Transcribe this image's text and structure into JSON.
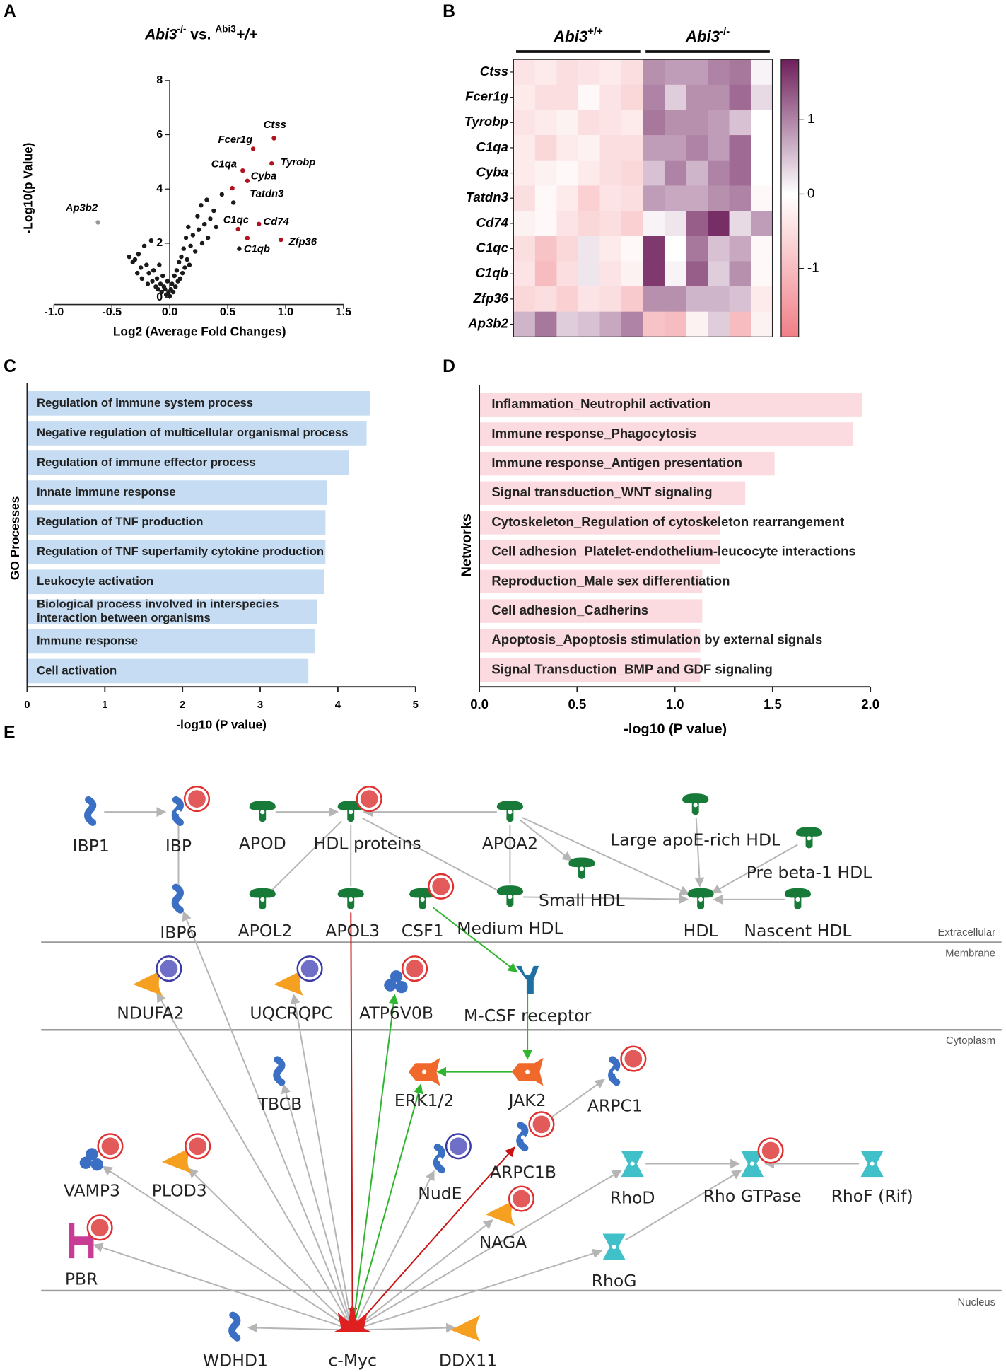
{
  "chart_data": [
    {
      "type": "scatter",
      "panel": "A",
      "title_parts": [
        "Abi3",
        "-/-",
        " vs. ",
        "Abi3",
        "+/+"
      ],
      "x_label": "Log2 (Average Fold Changes)",
      "y_label": "-Log10(p Value)",
      "xlim": [
        -1.0,
        1.5
      ],
      "ylim": [
        0,
        8
      ],
      "xticks": [
        {
          "value": -1,
          "label": "-1.0"
        },
        {
          "value": -0.5,
          "label": "-0.5"
        },
        {
          "value": 0,
          "label": "0.0"
        },
        {
          "value": 0.5,
          "label": "0.5"
        },
        {
          "value": 1,
          "label": "1.0"
        },
        {
          "value": 1.5,
          "label": "1.5"
        }
      ],
      "yticks": [
        0,
        2,
        4,
        6,
        8
      ],
      "series": [
        {
          "color": "#1a1a1a",
          "x": [
            -0.35,
            -0.32,
            -0.3,
            -0.28,
            -0.27,
            -0.25,
            -0.24,
            -0.22,
            -0.2,
            -0.19,
            -0.18,
            -0.16,
            -0.15,
            -0.14,
            -0.12,
            -0.11,
            -0.1,
            -0.09,
            -0.08,
            -0.07,
            -0.06,
            -0.05,
            -0.04,
            -0.03,
            -0.02,
            -0.01,
            0,
            0.01,
            0.02,
            0.03,
            0.04,
            0.05,
            0.06,
            0.07,
            0.08,
            0.09,
            0.1,
            0.11,
            0.12,
            0.13,
            0.14,
            0.15,
            0.16,
            0.17,
            0.18,
            0.2,
            0.22,
            0.24,
            0.25,
            0.27,
            0.28,
            0.3,
            0.32,
            0.33,
            0.35,
            0.38,
            0.4,
            0.45,
            0.55,
            0.6
          ],
          "values": [
            1.5,
            1.3,
            1.4,
            0.9,
            1.6,
            1.1,
            0.7,
            1.9,
            1.2,
            0.5,
            0.9,
            2.1,
            0.6,
            1.0,
            0.4,
            0.7,
            0.3,
            1.2,
            0.5,
            0.2,
            0.8,
            0.4,
            0.3,
            0.1,
            0.6,
            0.2,
            0.05,
            0.3,
            0.5,
            0.2,
            0.8,
            0.4,
            1.0,
            0.6,
            1.3,
            0.7,
            1.5,
            0.9,
            1.8,
            1.1,
            2.2,
            1.4,
            2.6,
            1.2,
            1.9,
            2.3,
            1.7,
            3.0,
            2.5,
            3.4,
            2.0,
            2.7,
            3.6,
            2.2,
            2.9,
            3.2,
            2.6,
            3.8,
            3.5,
            1.8
          ]
        },
        {
          "color": "#999999",
          "x": [
            -0.62
          ],
          "values": [
            2.77
          ],
          "labels": [
            "Ap3b2"
          ]
        },
        {
          "color": "#b0141e",
          "x": [
            0.9,
            0.72,
            0.88,
            0.63,
            0.67,
            0.54,
            0.77,
            0.59,
            0.67,
            0.96
          ],
          "values": [
            5.87,
            5.48,
            4.94,
            4.68,
            4.3,
            4.03,
            2.71,
            2.52,
            2.19,
            2.13
          ],
          "labels": [
            "Ctss",
            "Fcer1g",
            "Tyrobp",
            "C1qa",
            "Cyba",
            "Tatdn3",
            "Cd74",
            "C1qc",
            "C1qb",
            "Zfp36"
          ]
        }
      ]
    },
    {
      "type": "heatmap",
      "panel": "B",
      "groups": [
        {
          "name": "Abi3",
          "genotype": "+/+"
        },
        {
          "name": "Abi3",
          "genotype": "-/-"
        }
      ],
      "rows": [
        "Ctss",
        "Fcer1g",
        "Tyrobp",
        "C1qa",
        "Cyba",
        "Tatdn3",
        "Cd74",
        "C1qc",
        "C1qb",
        "Zfp36",
        "Ap3b2"
      ],
      "values": [
        [
          -0.4,
          -0.3,
          -0.5,
          -0.4,
          -0.3,
          -0.5,
          0.9,
          0.8,
          0.8,
          1.0,
          1.1,
          0.1
        ],
        [
          -0.3,
          -0.5,
          -0.5,
          -0.1,
          -0.4,
          -0.6,
          1.0,
          0.4,
          0.9,
          0.9,
          1.2,
          0.3
        ],
        [
          -0.4,
          -0.3,
          -0.2,
          -0.5,
          -0.4,
          -0.3,
          1.1,
          0.9,
          0.9,
          0.8,
          0.5,
          0.0
        ],
        [
          -0.3,
          -0.6,
          -0.3,
          -0.2,
          -0.5,
          -0.5,
          0.8,
          0.8,
          1.0,
          0.8,
          1.2,
          0.0
        ],
        [
          -0.3,
          -0.2,
          -0.1,
          -0.3,
          -0.5,
          -0.6,
          0.5,
          1.0,
          0.6,
          1.0,
          1.2,
          0.0
        ],
        [
          -0.5,
          -0.1,
          -0.3,
          -0.7,
          -0.4,
          -0.5,
          0.8,
          0.7,
          0.7,
          0.9,
          1.0,
          -0.1
        ],
        [
          -0.2,
          -0.1,
          -0.4,
          -0.6,
          -0.5,
          -0.7,
          0.1,
          0.2,
          1.3,
          1.7,
          0.3,
          0.8
        ],
        [
          -0.5,
          -0.9,
          -0.6,
          0.2,
          -0.3,
          -0.1,
          1.6,
          0.0,
          1.1,
          0.5,
          0.7,
          -0.1
        ],
        [
          -0.4,
          -1.0,
          -0.5,
          0.2,
          -0.4,
          -0.2,
          1.6,
          0.1,
          1.3,
          0.4,
          0.9,
          -0.1
        ],
        [
          -0.6,
          -0.5,
          -0.7,
          -0.4,
          -0.5,
          -0.8,
          0.9,
          0.9,
          0.6,
          0.6,
          0.5,
          -0.3
        ],
        [
          0.6,
          1.1,
          0.4,
          0.5,
          0.7,
          1.0,
          -0.9,
          -1.0,
          -0.2,
          0.4,
          -1.0,
          -0.2
        ]
      ],
      "clim": [
        -1.92,
        1.81
      ],
      "cticks": [
        1,
        0,
        -1
      ],
      "colors": {
        "low": "#f07f86",
        "mid": "#ffffff",
        "high": "#6e1f5c"
      }
    },
    {
      "type": "bar",
      "orientation": "horizontal",
      "panel": "C",
      "y_label": "GO Processes",
      "x_label": "-log10 (P value)",
      "color": "#c5dcf2",
      "categories": [
        "Regulation of immune system process",
        "Negative regulation of multicellular organismal process",
        "Regulation of immune effector process",
        "Innate immune response",
        "Regulation of TNF production",
        "Regulation of TNF superfamily cytokine production",
        "Leukocyte activation",
        [
          "Biological process involved in interspecies",
          "interaction between organisms"
        ],
        "Immune response",
        "Cell activation"
      ],
      "values": [
        4.41,
        4.37,
        4.14,
        3.86,
        3.84,
        3.84,
        3.82,
        3.73,
        3.7,
        3.62
      ],
      "xlim": [
        0,
        5
      ],
      "xticks": [
        0,
        1,
        2,
        3,
        4,
        5
      ]
    },
    {
      "type": "bar",
      "orientation": "horizontal",
      "panel": "D",
      "y_label": "Networks",
      "x_label": "-log10 (P value)",
      "color": "#fbdbe0",
      "categories": [
        "Inflammation_Neutrophil activation",
        "Immune response_Phagocytosis",
        "Immune response_Antigen presentation",
        "Signal transduction_WNT signaling",
        "Cytoskeleton_Regulation of cytoskeleton rearrangement",
        "Cell adhesion_Platelet-endothelium-leucocyte interactions",
        "Reproduction_Male sex differentiation",
        "Cell adhesion_Cadherins",
        "Apoptosis_Apoptosis stimulation by external signals",
        "Signal Transduction_BMP and GDF signaling"
      ],
      "values": [
        1.96,
        1.91,
        1.51,
        1.36,
        1.23,
        1.23,
        1.14,
        1.14,
        1.13,
        1.13
      ],
      "xlim": [
        0,
        2
      ],
      "xticks": [
        {
          "value": 0,
          "label": "0.0"
        },
        {
          "value": 0.5,
          "label": "0.5"
        },
        {
          "value": 1,
          "label": "1.0"
        },
        {
          "value": 1.5,
          "label": "1.5"
        },
        {
          "value": 2,
          "label": "2.0"
        }
      ]
    }
  ],
  "diagram": {
    "panel": "E",
    "regions": [
      "Extracellular",
      "Membrane",
      "Cytoplasm",
      "Nucleus"
    ],
    "nodes": [
      "IBP1",
      "IBP",
      "APOD",
      "HDL proteins",
      "APOA2",
      "Large apoE-rich HDL",
      "Pre beta-1 HDL",
      "IBP6",
      "APOL2",
      "APOL3",
      "CSF1",
      "Medium HDL",
      "Small HDL",
      "HDL",
      "Nascent HDL",
      "NDUFA2",
      "UQCRQPC",
      "ATP6V0B",
      "M-CSF receptor",
      "TBCB",
      "ERK1/2",
      "JAK2",
      "ARPC1",
      "VAMP3",
      "PLOD3",
      "NudE",
      "ARPC1B",
      "NAGA",
      "RhoD",
      "Rho GTPase",
      "RhoF (Rif)",
      "PBR",
      "RhoG",
      "WDHD1",
      "c-Myc",
      "DDX11"
    ]
  }
}
